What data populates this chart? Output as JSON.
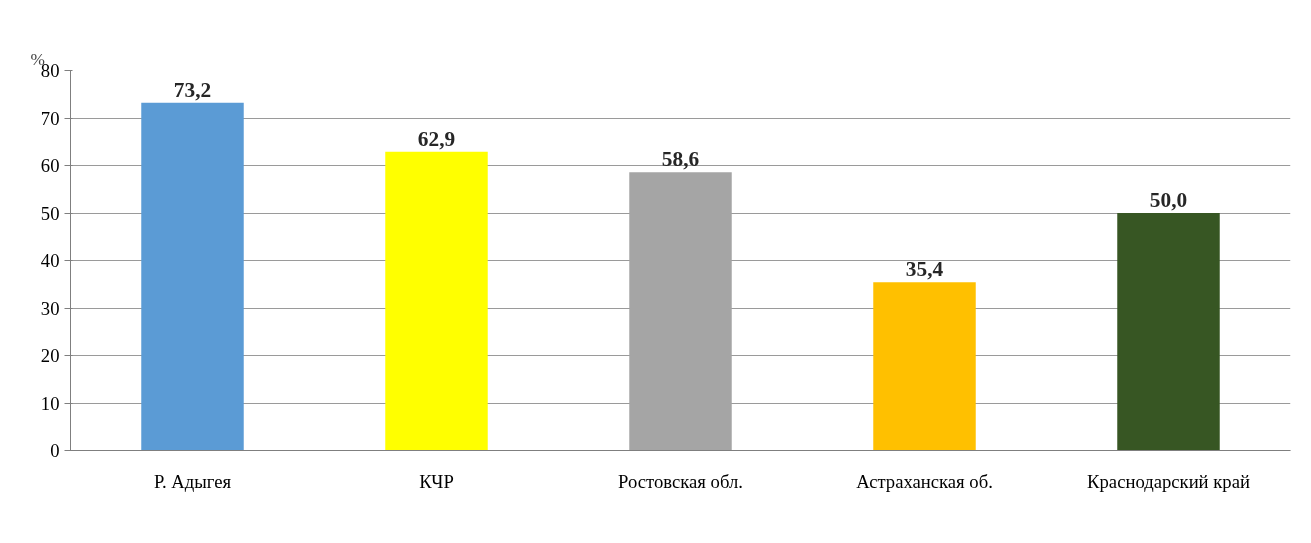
{
  "chart_data": {
    "type": "bar",
    "ylabel": "%",
    "categories": [
      "Р. Адыгея",
      "КЧР",
      "Ростовская обл.",
      "Астраханская об.",
      "Краснодарский край"
    ],
    "values": [
      73.2,
      62.9,
      58.6,
      35.4,
      50.0
    ],
    "value_labels": [
      "73,2",
      "62,9",
      "58,6",
      "35,4",
      "50,0"
    ],
    "colors": [
      "#5b9bd5",
      "#ffff00",
      "#a5a5a5",
      "#ffc000",
      "#375623"
    ],
    "ylim": [
      0,
      80
    ],
    "yticks": [
      0,
      10,
      20,
      30,
      40,
      50,
      60,
      70,
      80
    ],
    "grid": "y"
  }
}
